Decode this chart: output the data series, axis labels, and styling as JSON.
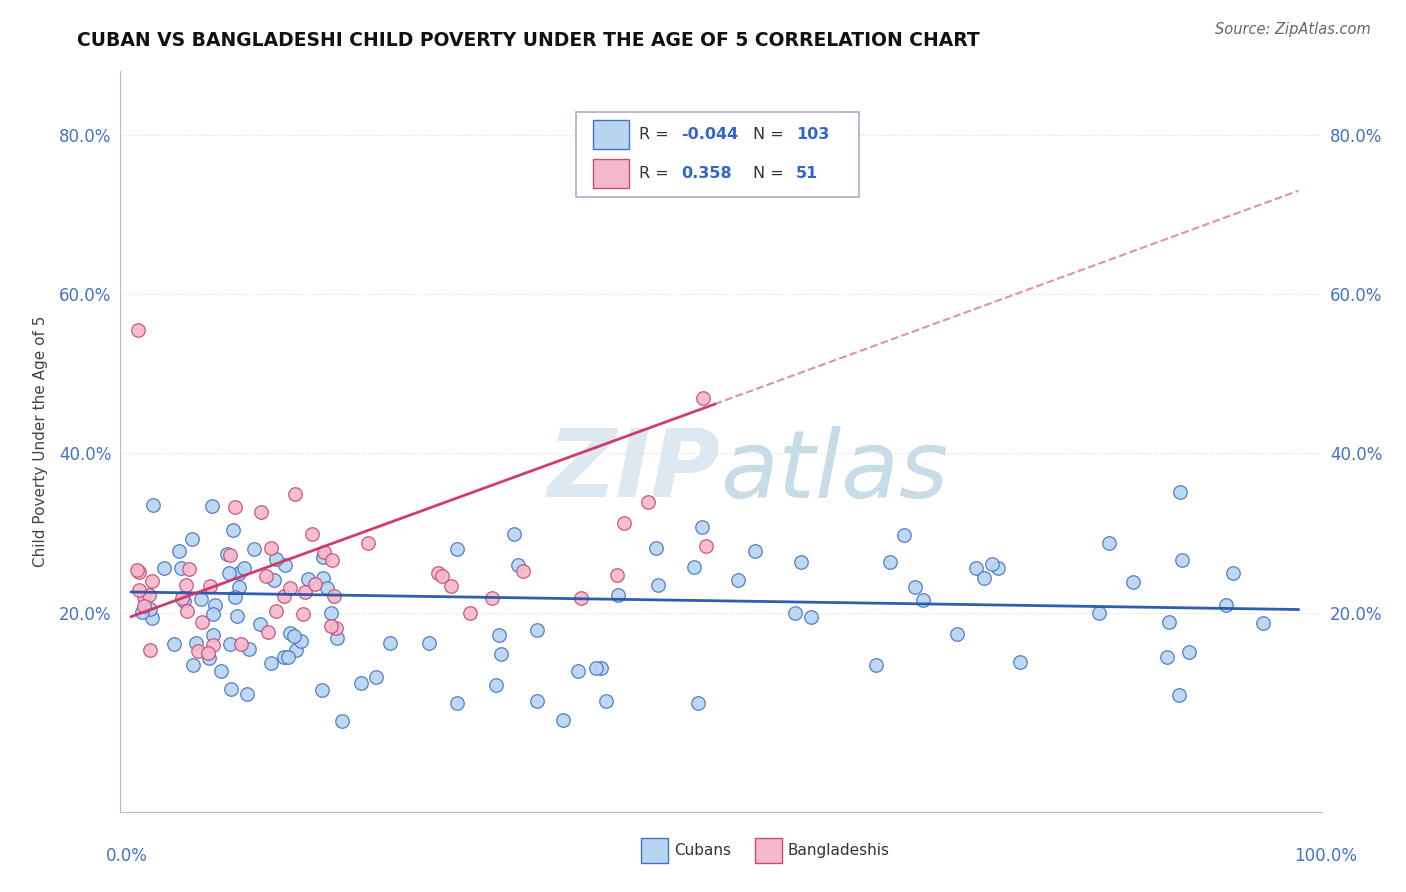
{
  "title": "CUBAN VS BANGLADESHI CHILD POVERTY UNDER THE AGE OF 5 CORRELATION CHART",
  "source": "Source: ZipAtlas.com",
  "ylabel": "Child Poverty Under the Age of 5",
  "xlim": [
    0.0,
    1.0
  ],
  "ylim": [
    -0.05,
    0.88
  ],
  "yticks": [
    0.2,
    0.4,
    0.6,
    0.8
  ],
  "ytick_labels": [
    "20.0%",
    "40.0%",
    "60.0%",
    "80.0%"
  ],
  "legend_cubans_R": "-0.044",
  "legend_cubans_N": "103",
  "legend_bangladeshis_R": "0.358",
  "legend_bangladeshis_N": "51",
  "cubans_fill": "#b8d4f0",
  "cubans_edge": "#4472c4",
  "bangladeshis_fill": "#f4b8cc",
  "bangladeshis_edge": "#c84878",
  "trend_cubans_color": "#2255aa",
  "trend_bangladeshis_color": "#cc3366",
  "background_color": "#ffffff",
  "grid_color": "#dddddd",
  "watermark_color": "#dde8f0"
}
